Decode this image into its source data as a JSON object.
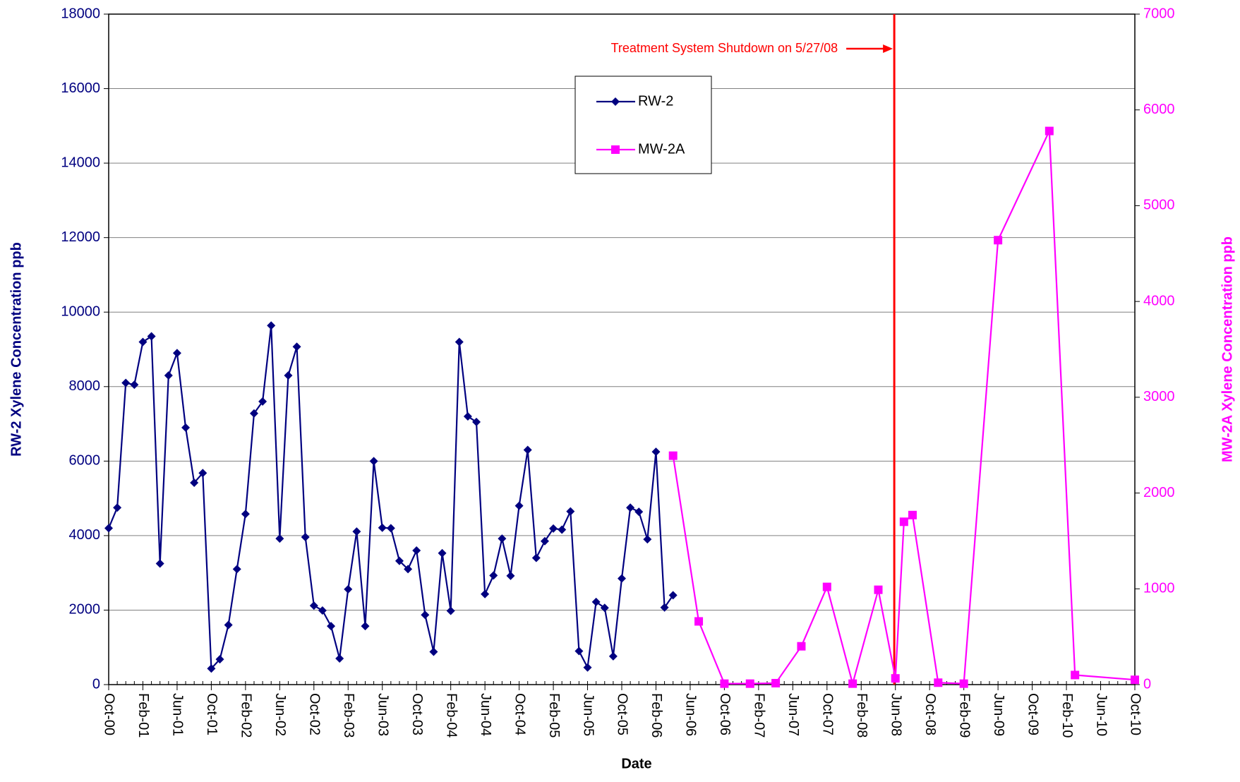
{
  "chart_data": {
    "type": "line",
    "x_label": "Date",
    "y_label": "RW-2 Xylene Concentration ppb",
    "y2_label": "MW-2A Xylene Concentration ppb",
    "xlim": [
      "2000-10",
      "2010-10"
    ],
    "xticks": [
      {
        "value": "2000-10",
        "label": "Oct-00"
      },
      {
        "value": "2001-02",
        "label": "Feb-01"
      },
      {
        "value": "2001-06",
        "label": "Jun-01"
      },
      {
        "value": "2001-10",
        "label": "Oct-01"
      },
      {
        "value": "2002-02",
        "label": "Feb-02"
      },
      {
        "value": "2002-06",
        "label": "Jun-02"
      },
      {
        "value": "2002-10",
        "label": "Oct-02"
      },
      {
        "value": "2003-02",
        "label": "Feb-03"
      },
      {
        "value": "2003-06",
        "label": "Jun-03"
      },
      {
        "value": "2003-10",
        "label": "Oct-03"
      },
      {
        "value": "2004-02",
        "label": "Feb-04"
      },
      {
        "value": "2004-06",
        "label": "Jun-04"
      },
      {
        "value": "2004-10",
        "label": "Oct-04"
      },
      {
        "value": "2005-02",
        "label": "Feb-05"
      },
      {
        "value": "2005-06",
        "label": "Jun-05"
      },
      {
        "value": "2005-10",
        "label": "Oct-05"
      },
      {
        "value": "2006-02",
        "label": "Feb-06"
      },
      {
        "value": "2006-06",
        "label": "Jun-06"
      },
      {
        "value": "2006-10",
        "label": "Oct-06"
      },
      {
        "value": "2007-02",
        "label": "Feb-07"
      },
      {
        "value": "2007-06",
        "label": "Jun-07"
      },
      {
        "value": "2007-10",
        "label": "Oct-07"
      },
      {
        "value": "2008-02",
        "label": "Feb-08"
      },
      {
        "value": "2008-06",
        "label": "Jun-08"
      },
      {
        "value": "2008-10",
        "label": "Oct-08"
      },
      {
        "value": "2009-02",
        "label": "Feb-09"
      },
      {
        "value": "2009-06",
        "label": "Jun-09"
      },
      {
        "value": "2009-10",
        "label": "Oct-09"
      },
      {
        "value": "2010-02",
        "label": "Feb-10"
      },
      {
        "value": "2010-06",
        "label": "Jun-10"
      },
      {
        "value": "2010-10",
        "label": "Oct-10"
      }
    ],
    "ylim": [
      0,
      18000
    ],
    "yticks": [
      0,
      2000,
      4000,
      6000,
      8000,
      10000,
      12000,
      14000,
      16000,
      18000
    ],
    "y2lim": [
      0,
      7000
    ],
    "y2ticks": [
      0,
      1000,
      2000,
      3000,
      4000,
      5000,
      6000,
      7000
    ],
    "grid": true,
    "series": [
      {
        "name": "RW-2",
        "color": "#000080",
        "marker": "diamond",
        "x": [
          "2000-10",
          "2000-11",
          "2000-12",
          "2001-01",
          "2001-02",
          "2001-03",
          "2001-04",
          "2001-05",
          "2001-06",
          "2001-07",
          "2001-08",
          "2001-09",
          "2001-10",
          "2001-11",
          "2001-12",
          "2002-01",
          "2002-02",
          "2002-03",
          "2002-04",
          "2002-05",
          "2002-06",
          "2002-07",
          "2002-08",
          "2002-09",
          "2002-10",
          "2002-11",
          "2002-12",
          "2003-01",
          "2003-02",
          "2003-03",
          "2003-04",
          "2003-05",
          "2003-06",
          "2003-07",
          "2003-08",
          "2003-09",
          "2003-10",
          "2003-11",
          "2003-12",
          "2004-01",
          "2004-02",
          "2004-03",
          "2004-04",
          "2004-05",
          "2004-06",
          "2004-07",
          "2004-08",
          "2004-09",
          "2004-10",
          "2004-11",
          "2004-12",
          "2005-01",
          "2005-02",
          "2005-03",
          "2005-04",
          "2005-05",
          "2005-06",
          "2005-07",
          "2005-08",
          "2005-09",
          "2005-10",
          "2005-11",
          "2005-12",
          "2006-01",
          "2006-02",
          "2006-03",
          "2006-04"
        ],
        "values": [
          4200,
          4750,
          8100,
          8050,
          9200,
          9350,
          3250,
          8300,
          8900,
          6900,
          5420,
          5680,
          430,
          680,
          1600,
          3100,
          4580,
          7280,
          7600,
          9640,
          3920,
          8300,
          9070,
          3960,
          2120,
          1990,
          1570,
          700,
          2560,
          4110,
          1570,
          6000,
          4210,
          4200,
          3320,
          3100,
          3600,
          1870,
          880,
          3530,
          1980,
          9200,
          7200,
          7050,
          2430,
          2930,
          3920,
          2920,
          4800,
          6300,
          3400,
          3850,
          4190,
          4160,
          4650,
          900,
          460,
          2220,
          2060,
          760,
          2850,
          4750,
          4640,
          3900,
          6250,
          2070,
          2400
        ]
      },
      {
        "name": "MW-2A",
        "color": "#ff00ff",
        "marker": "square",
        "axis": "y2",
        "x": [
          "2006-04",
          "2006-07",
          "2006-10",
          "2007-01",
          "2007-04",
          "2007-07",
          "2007-10",
          "2008-01",
          "2008-04",
          "2008-06",
          "2008-07",
          "2008-08",
          "2008-11",
          "2009-02",
          "2009-06",
          "2009-12",
          "2010-03",
          "2010-10"
        ],
        "values": [
          2390,
          660,
          10,
          10,
          15,
          400,
          1020,
          10,
          990,
          65,
          1700,
          1770,
          20,
          10,
          4640,
          5780,
          100,
          50
        ]
      }
    ],
    "annotation": {
      "text": "Treatment System Shutdown on 5/27/08",
      "x": "2008-05-27",
      "color": "#ff0000"
    }
  }
}
